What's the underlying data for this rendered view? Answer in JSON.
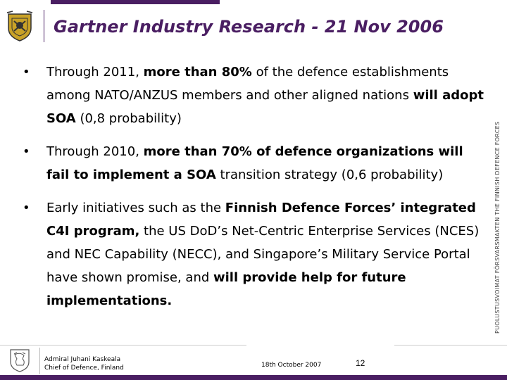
{
  "header": {
    "title": "Gartner Industry Research - 21 Nov 2006"
  },
  "bullets": [
    [
      {
        "t": "Through 2011, ",
        "b": false
      },
      {
        "t": "more than 80%",
        "b": true
      },
      {
        "t": " of the defence establishments among NATO/ANZUS members and other aligned nations ",
        "b": false
      },
      {
        "t": "will adopt SOA",
        "b": true
      },
      {
        "t": " (0,8 probability)",
        "b": false
      }
    ],
    [
      {
        "t": "Through 2010, ",
        "b": false
      },
      {
        "t": "more than 70% of defence organizations will fail to implement a SOA",
        "b": true
      },
      {
        "t": " transition strategy (0,6 probability)",
        "b": false
      }
    ],
    [
      {
        "t": "Early initiatives such as the ",
        "b": false
      },
      {
        "t": "Finnish Defence Forces’ integrated C4I program,",
        "b": true
      },
      {
        "t": " the US DoD’s Net-Centric Enterprise Services (NCES) and NEC Capability (NECC), and Singapore’s Military Service Portal have shown promise, and ",
        "b": false
      },
      {
        "t": "will provide help for future implementations.",
        "b": true
      }
    ]
  ],
  "side_text": "PUOLUSTUSVOIMAT    FÖRSVARSMAKTEN    THE FINNISH DEFENCE FORCES",
  "footer": {
    "name_line1": "Admiral Juhani Kaskeala",
    "name_line2": "Chief of Defence, Finland",
    "date": "18th October 2007",
    "page_number": "12"
  },
  "colors": {
    "accent": "#4a1e62",
    "crest_gold": "#c9a227"
  },
  "icons": {
    "header_logo": "finnish-defence-forces-crest-icon",
    "footer_logo": "finnish-lion-emblem-icon"
  }
}
